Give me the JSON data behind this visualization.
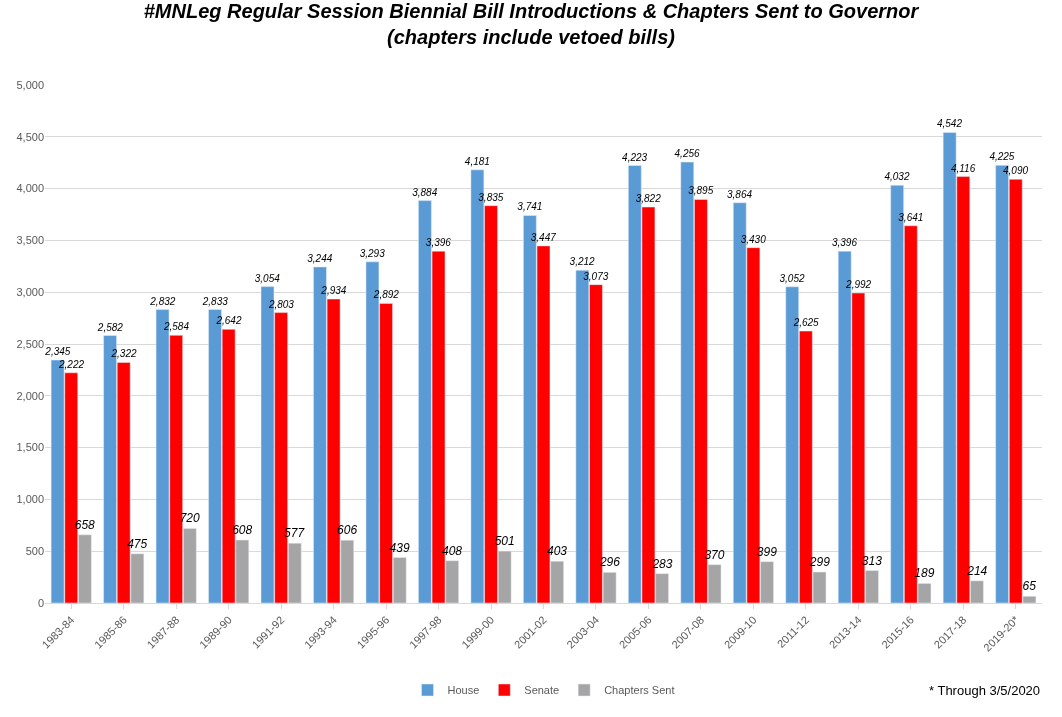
{
  "chart_data": {
    "type": "bar",
    "title": "#MNLeg Regular Session Biennial Bill Introductions & Chapters Sent to Governor\n(chapters include vetoed bills)",
    "categories": [
      "1983-84",
      "1985-86",
      "1987-88",
      "1989-90",
      "1991-92",
      "1993-94",
      "1995-96",
      "1997-98",
      "1999-00",
      "2001-02",
      "2003-04",
      "2005-06",
      "2007-08",
      "2009-10",
      "2011-12",
      "2013-14",
      "2015-16",
      "2017-18",
      "2019-20*"
    ],
    "series": [
      {
        "name": "House",
        "color": "#5b9bd5",
        "values": [
          2345,
          2582,
          2832,
          2833,
          3054,
          3244,
          3293,
          3884,
          4181,
          3741,
          3212,
          4223,
          4256,
          3864,
          3052,
          3396,
          4032,
          4542,
          4225
        ],
        "value_labels": [
          "2,345",
          "2,582",
          "2,832",
          "2,833",
          "3,054",
          "3,244",
          "3,293",
          "3,884",
          "4,181",
          "3,741",
          "3,212",
          "4,223",
          "4,256",
          "3,864",
          "3,052",
          "3,396",
          "4,032",
          "4,542",
          "4,225"
        ]
      },
      {
        "name": "Senate",
        "color": "#ff0000",
        "values": [
          2222,
          2322,
          2584,
          2642,
          2803,
          2934,
          2892,
          3396,
          3835,
          3447,
          3073,
          3822,
          3895,
          3430,
          2625,
          2992,
          3641,
          4116,
          4090
        ],
        "value_labels": [
          "2,222",
          "2,322",
          "2,584",
          "2,642",
          "2,803",
          "2,934",
          "2,892",
          "3,396",
          "3,835",
          "3,447",
          "3,073",
          "3,822",
          "3,895",
          "3,430",
          "2,625",
          "2,992",
          "3,641",
          "4,116",
          "4,090"
        ]
      },
      {
        "name": "Chapters Sent",
        "color": "#a5a5a5",
        "values": [
          658,
          475,
          720,
          608,
          577,
          606,
          439,
          408,
          501,
          403,
          296,
          283,
          370,
          399,
          299,
          313,
          189,
          214,
          65
        ],
        "value_labels": [
          "658",
          "475",
          "720",
          "608",
          "577",
          "606",
          "439",
          "408",
          "501",
          "403",
          "296",
          "283",
          "370",
          "399",
          "299",
          "313",
          "189",
          "214",
          "65"
        ]
      }
    ],
    "ylim": [
      0,
      5000
    ],
    "yticks": [
      0,
      500,
      {
        "value": 1000,
        "label": "1,000"
      },
      {
        "value": 1500,
        "label": "1,500"
      },
      {
        "value": 2000,
        "label": "2,000"
      },
      {
        "value": 2500,
        "label": "2,500"
      },
      {
        "value": 3000,
        "label": "3,000"
      },
      {
        "value": 3500,
        "label": "3,500"
      },
      {
        "value": 4000,
        "label": "4,000"
      },
      {
        "value": 4500,
        "label": "4,500"
      },
      {
        "value": 5000,
        "label": "5,000"
      }
    ],
    "grid": "y",
    "legend": "bottom",
    "annotations": [
      "* Through 3/5/2020"
    ]
  }
}
